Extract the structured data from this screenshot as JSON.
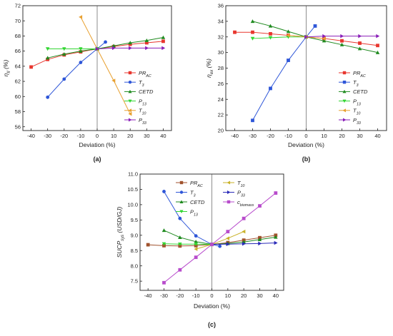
{
  "chart_data": [
    {
      "type": "line",
      "panel_label": "(a)",
      "xlabel": "Deviation (%)",
      "ylabel": "η_Ⅱ (%)",
      "ylabel_main": "η",
      "ylabel_sub": "II",
      "ylabel_unit": " (%)",
      "xlim": [
        -45,
        45
      ],
      "ylim": [
        55.5,
        72
      ],
      "xticks": [
        -40,
        -30,
        -20,
        -10,
        0,
        10,
        20,
        30,
        40
      ],
      "yticks": [
        56,
        58,
        60,
        62,
        64,
        66,
        68,
        70,
        72
      ],
      "legend_position": "bottom-right",
      "series": [
        {
          "name": "PR_AC",
          "label_main": "PR",
          "label_sub": "AC",
          "color": "#e8362e",
          "marker": "square",
          "x": [
            -40,
            -30,
            -20,
            -10,
            0,
            10,
            20,
            30,
            40
          ],
          "y": [
            63.9,
            64.9,
            65.5,
            65.9,
            66.3,
            66.6,
            66.9,
            67.1,
            67.3
          ]
        },
        {
          "name": "T_3",
          "label_main": "T",
          "label_sub": "3",
          "color": "#2e56d8",
          "marker": "circle",
          "x": [
            -30,
            -20,
            -10,
            0,
            5
          ],
          "y": [
            59.9,
            62.3,
            64.5,
            66.3,
            67.2
          ]
        },
        {
          "name": "CETD",
          "label_main": "CETD",
          "label_sub": "",
          "color": "#1f8a1f",
          "marker": "triangle-up",
          "x": [
            -30,
            -20,
            -10,
            0,
            10,
            20,
            30,
            40
          ],
          "y": [
            65.1,
            65.6,
            66.0,
            66.3,
            66.7,
            67.1,
            67.4,
            67.8
          ]
        },
        {
          "name": "P_13",
          "label_main": "P",
          "label_sub": "13",
          "color": "#33d633",
          "marker": "triangle-down",
          "x": [
            -30,
            -20,
            -10,
            0
          ],
          "y": [
            66.3,
            66.3,
            66.3,
            66.3
          ]
        },
        {
          "name": "T_10",
          "label_main": "T",
          "label_sub": "10",
          "color": "#e8a030",
          "marker": "triangle-left",
          "x": [
            -10,
            10,
            20
          ],
          "y": [
            70.5,
            62.1,
            57.7
          ]
        },
        {
          "name": "P_33",
          "label_main": "P",
          "label_sub": "33",
          "color": "#8a1fb8",
          "marker": "triangle-right",
          "x": [
            0,
            10,
            20,
            30,
            40
          ],
          "y": [
            66.3,
            66.4,
            66.4,
            66.4,
            66.4
          ]
        }
      ]
    },
    {
      "type": "line",
      "panel_label": "(b)",
      "xlabel": "Deviation (%)",
      "ylabel": "η_ex (%)",
      "ylabel_main": "η",
      "ylabel_sub": "ex",
      "ylabel_unit": " (%)",
      "xlim": [
        -45,
        45
      ],
      "ylim": [
        20,
        36
      ],
      "xticks": [
        -40,
        -30,
        -20,
        -10,
        0,
        10,
        20,
        30,
        40
      ],
      "yticks": [
        20,
        22,
        24,
        26,
        28,
        30,
        32,
        34,
        36
      ],
      "legend_position": "bottom-right",
      "series": [
        {
          "name": "PR_AC",
          "label_main": "PR",
          "label_sub": "AC",
          "color": "#e8362e",
          "marker": "square",
          "x": [
            -40,
            -30,
            -20,
            -10,
            0,
            10,
            20,
            30,
            40
          ],
          "y": [
            32.6,
            32.6,
            32.4,
            32.2,
            32.0,
            31.8,
            31.5,
            31.2,
            30.9
          ]
        },
        {
          "name": "T_3",
          "label_main": "T",
          "label_sub": "3",
          "color": "#2e56d8",
          "marker": "square",
          "x": [
            -30,
            -20,
            -10,
            0,
            5
          ],
          "y": [
            21.3,
            25.4,
            29.0,
            32.0,
            33.4
          ]
        },
        {
          "name": "CETD",
          "label_main": "CETD",
          "label_sub": "",
          "color": "#1f8a1f",
          "marker": "triangle-up",
          "x": [
            -30,
            -20,
            -10,
            0,
            10,
            20,
            30,
            40
          ],
          "y": [
            34.0,
            33.4,
            32.7,
            32.0,
            31.5,
            31.0,
            30.5,
            30.0
          ]
        },
        {
          "name": "P_13",
          "label_main": "P",
          "label_sub": "13",
          "color": "#33d633",
          "marker": "triangle-down",
          "x": [
            -30,
            -20,
            -10,
            0
          ],
          "y": [
            31.8,
            31.9,
            32.0,
            32.0
          ]
        },
        {
          "name": "T_10",
          "label_main": "T",
          "label_sub": "10",
          "color": "#e8a030",
          "marker": "triangle-left",
          "x": [
            -10,
            0,
            10
          ],
          "y": [
            32.2,
            32.0,
            31.8
          ]
        },
        {
          "name": "P_33",
          "label_main": "P",
          "label_sub": "33",
          "color": "#8a1fb8",
          "marker": "triangle-right",
          "x": [
            0,
            10,
            20,
            30,
            40
          ],
          "y": [
            32.0,
            32.1,
            32.1,
            32.1,
            32.1
          ]
        }
      ]
    },
    {
      "type": "line",
      "panel_label": "(c)",
      "xlabel": "Deviation (%)",
      "ylabel": "SUCP_sys (USD/GJ)",
      "ylabel_main": "SUCP",
      "ylabel_sub": "sys",
      "ylabel_unit": " (USD/GJ)",
      "xlim": [
        -45,
        45
      ],
      "ylim": [
        7.2,
        11.0
      ],
      "xticks": [
        -40,
        -30,
        -20,
        -10,
        0,
        10,
        20,
        30,
        40
      ],
      "yticks": [
        7.5,
        8.0,
        8.5,
        9.0,
        9.5,
        10.0,
        10.5,
        11.0
      ],
      "legend_position": "top (two columns)",
      "series": [
        {
          "name": "PR_AC",
          "label_main": "PR",
          "label_sub": "AC",
          "color": "#a0522d",
          "marker": "square",
          "x": [
            -40,
            -30,
            -20,
            -10,
            0,
            10,
            20,
            30,
            40
          ],
          "y": [
            8.69,
            8.66,
            8.65,
            8.66,
            8.7,
            8.76,
            8.84,
            8.92,
            9.0
          ]
        },
        {
          "name": "T_3",
          "label_main": "T",
          "label_sub": "3",
          "color": "#2e56d8",
          "marker": "circle",
          "x": [
            -30,
            -20,
            -10,
            0,
            5
          ],
          "y": [
            10.43,
            9.55,
            8.98,
            8.7,
            8.64
          ]
        },
        {
          "name": "CETD",
          "label_main": "CETD",
          "label_sub": "",
          "color": "#1f8a1f",
          "marker": "triangle-up",
          "x": [
            -30,
            -20,
            -10,
            0,
            10,
            20,
            30,
            40
          ],
          "y": [
            9.16,
            8.93,
            8.79,
            8.7,
            8.73,
            8.78,
            8.86,
            8.94
          ]
        },
        {
          "name": "P_13",
          "label_main": "P",
          "label_sub": "13",
          "color": "#33d633",
          "marker": "triangle-down",
          "x": [
            -30,
            -20,
            -10,
            0
          ],
          "y": [
            8.72,
            8.71,
            8.71,
            8.7
          ]
        },
        {
          "name": "T_10",
          "label_main": "T",
          "label_sub": "10",
          "color": "#c9b22a",
          "marker": "triangle-left",
          "x": [
            -10,
            0,
            10,
            20
          ],
          "y": [
            8.55,
            8.7,
            8.9,
            9.12
          ]
        },
        {
          "name": "P_33",
          "label_main": "P",
          "label_sub": "33",
          "color": "#2a2ab8",
          "marker": "triangle-right",
          "x": [
            0,
            10,
            20,
            30,
            40
          ],
          "y": [
            8.7,
            8.71,
            8.72,
            8.73,
            8.75
          ]
        },
        {
          "name": "c_biomass",
          "label_main": "c",
          "label_sub": "biomass",
          "color": "#b84ccc",
          "marker": "square",
          "x": [
            -30,
            -20,
            -10,
            0,
            10,
            20,
            30,
            40
          ],
          "y": [
            7.45,
            7.87,
            8.28,
            8.7,
            9.12,
            9.55,
            9.96,
            10.38
          ]
        }
      ]
    }
  ]
}
